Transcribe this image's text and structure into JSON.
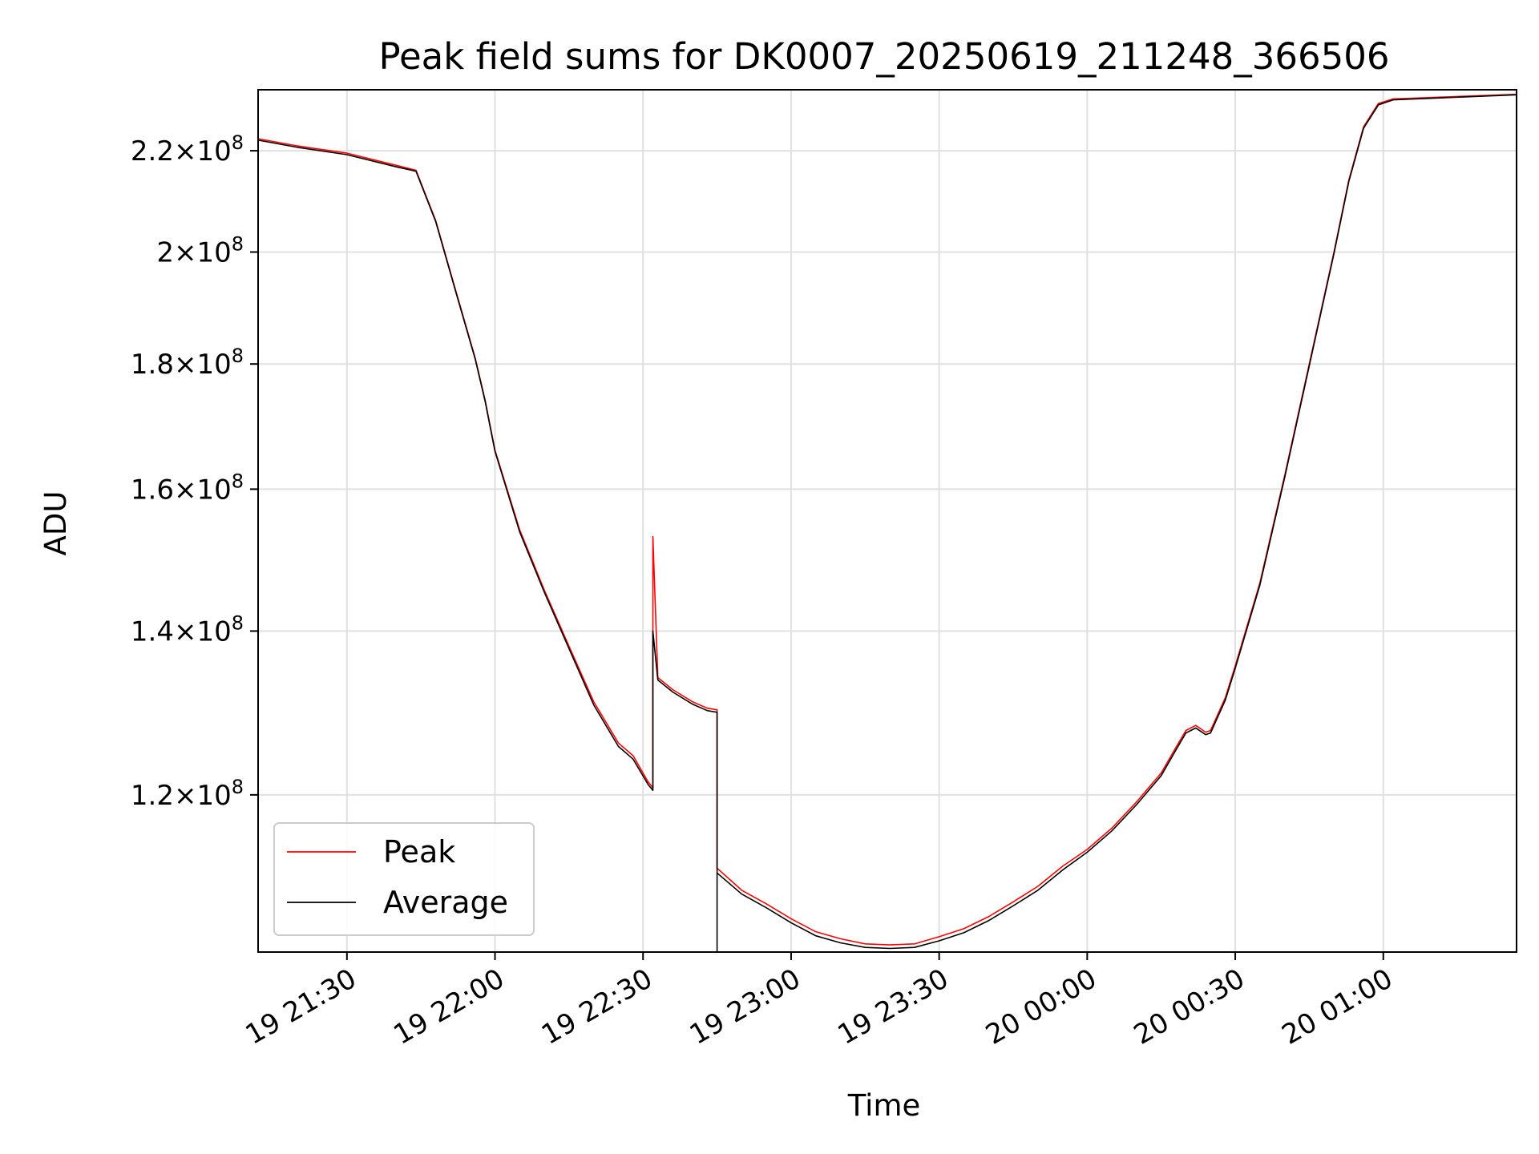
{
  "chart_data": {
    "type": "line",
    "title": "Peak field sums for DK0007_20250619_211248_366506",
    "xlabel": "Time",
    "ylabel": "ADU",
    "y_scale": "log",
    "grid": true,
    "legend_position": "lower-left",
    "xlim": [
      "2025-06-19 21:12",
      "2025-06-20 01:27"
    ],
    "ylim": [
      103500000,
      233000000
    ],
    "x_ticks": [
      {
        "value": "2025-06-19 21:30",
        "label": "19 21:30"
      },
      {
        "value": "2025-06-19 22:00",
        "label": "19 22:00"
      },
      {
        "value": "2025-06-19 22:30",
        "label": "19 22:30"
      },
      {
        "value": "2025-06-19 23:00",
        "label": "19 23:00"
      },
      {
        "value": "2025-06-19 23:30",
        "label": "19 23:30"
      },
      {
        "value": "2025-06-20 00:00",
        "label": "20 00:00"
      },
      {
        "value": "2025-06-20 00:30",
        "label": "20 00:30"
      },
      {
        "value": "2025-06-20 01:00",
        "label": "20 01:00"
      }
    ],
    "y_ticks": [
      {
        "value": 120000000,
        "mantissa": "1.2",
        "exponent": "8"
      },
      {
        "value": 140000000,
        "mantissa": "1.4",
        "exponent": "8"
      },
      {
        "value": 160000000,
        "mantissa": "1.6",
        "exponent": "8"
      },
      {
        "value": 180000000,
        "mantissa": "1.8",
        "exponent": "8"
      },
      {
        "value": 200000000,
        "mantissa": "2",
        "exponent": "8"
      },
      {
        "value": 220000000,
        "mantissa": "2.2",
        "exponent": "8"
      }
    ],
    "series": [
      {
        "name": "Peak",
        "color": "#ff0000",
        "points": [
          [
            "2025-06-19 21:12",
            222500000
          ],
          [
            "2025-06-19 21:20",
            221000000
          ],
          [
            "2025-06-19 21:30",
            219500000
          ],
          [
            "2025-06-19 21:40",
            217000000
          ],
          [
            "2025-06-19 21:44",
            216000000
          ],
          [
            "2025-06-19 21:48",
            206000000
          ],
          [
            "2025-06-19 21:52",
            193000000
          ],
          [
            "2025-06-19 21:56",
            181000000
          ],
          [
            "2025-06-19 21:58",
            174000000
          ],
          [
            "2025-06-19 22:00",
            166000000
          ],
          [
            "2025-06-19 22:05",
            154000000
          ],
          [
            "2025-06-19 22:10",
            145500000
          ],
          [
            "2025-06-19 22:15",
            138000000
          ],
          [
            "2025-06-19 22:20",
            131000000
          ],
          [
            "2025-06-19 22:25",
            126000000
          ],
          [
            "2025-06-19 22:28",
            124500000
          ],
          [
            "2025-06-19 22:31",
            121500000
          ],
          [
            "2025-06-19 22:32",
            120800000
          ],
          [
            "2025-06-19 22:32",
            153000000
          ],
          [
            "2025-06-19 22:33",
            134000000
          ],
          [
            "2025-06-19 22:36",
            132500000
          ],
          [
            "2025-06-19 22:40",
            131000000
          ],
          [
            "2025-06-19 22:43",
            130200000
          ],
          [
            "2025-06-19 22:45",
            130000000
          ],
          [
            "2025-06-19 22:45",
            112000000
          ],
          [
            "2025-06-19 22:50",
            109700000
          ],
          [
            "2025-06-19 22:55",
            108300000
          ],
          [
            "2025-06-19 23:00",
            106800000
          ],
          [
            "2025-06-19 23:05",
            105500000
          ],
          [
            "2025-06-19 23:10",
            104800000
          ],
          [
            "2025-06-19 23:15",
            104300000
          ],
          [
            "2025-06-19 23:20",
            104200000
          ],
          [
            "2025-06-19 23:25",
            104300000
          ],
          [
            "2025-06-19 23:30",
            105000000
          ],
          [
            "2025-06-19 23:35",
            105800000
          ],
          [
            "2025-06-19 23:40",
            107000000
          ],
          [
            "2025-06-19 23:45",
            108500000
          ],
          [
            "2025-06-19 23:50",
            110100000
          ],
          [
            "2025-06-19 23:55",
            112200000
          ],
          [
            "2025-06-20 00:00",
            114000000
          ],
          [
            "2025-06-20 00:05",
            116300000
          ],
          [
            "2025-06-20 00:10",
            119200000
          ],
          [
            "2025-06-20 00:15",
            122500000
          ],
          [
            "2025-06-20 00:18",
            125500000
          ],
          [
            "2025-06-20 00:20",
            127500000
          ],
          [
            "2025-06-20 00:22",
            128100000
          ],
          [
            "2025-06-20 00:24",
            127300000
          ],
          [
            "2025-06-20 00:25",
            127500000
          ],
          [
            "2025-06-20 00:28",
            131500000
          ],
          [
            "2025-06-20 00:30",
            135500000
          ],
          [
            "2025-06-20 00:35",
            146500000
          ],
          [
            "2025-06-20 00:40",
            162000000
          ],
          [
            "2025-06-20 00:45",
            180000000
          ],
          [
            "2025-06-20 00:50",
            200000000
          ],
          [
            "2025-06-20 00:53",
            214000000
          ],
          [
            "2025-06-20 00:56",
            225000000
          ],
          [
            "2025-06-20 00:59",
            230000000
          ],
          [
            "2025-06-20 01:02",
            231000000
          ],
          [
            "2025-06-20 01:27",
            232000000
          ]
        ]
      },
      {
        "name": "Average",
        "color": "#000000",
        "points": [
          [
            "2025-06-19 21:12",
            222200000
          ],
          [
            "2025-06-19 21:20",
            220700000
          ],
          [
            "2025-06-19 21:30",
            219200000
          ],
          [
            "2025-06-19 21:40",
            216700000
          ],
          [
            "2025-06-19 21:44",
            215800000
          ],
          [
            "2025-06-19 21:48",
            205800000
          ],
          [
            "2025-06-19 21:52",
            192800000
          ],
          [
            "2025-06-19 21:56",
            180800000
          ],
          [
            "2025-06-19 21:58",
            173800000
          ],
          [
            "2025-06-19 22:00",
            165800000
          ],
          [
            "2025-06-19 22:05",
            153700000
          ],
          [
            "2025-06-19 22:10",
            145200000
          ],
          [
            "2025-06-19 22:15",
            137700000
          ],
          [
            "2025-06-19 22:20",
            130600000
          ],
          [
            "2025-06-19 22:25",
            125600000
          ],
          [
            "2025-06-19 22:28",
            124100000
          ],
          [
            "2025-06-19 22:31",
            121200000
          ],
          [
            "2025-06-19 22:32",
            120500000
          ],
          [
            "2025-06-19 22:32",
            140000000
          ],
          [
            "2025-06-19 22:33",
            133700000
          ],
          [
            "2025-06-19 22:36",
            132200000
          ],
          [
            "2025-06-19 22:40",
            130700000
          ],
          [
            "2025-06-19 22:43",
            129900000
          ],
          [
            "2025-06-19 22:45",
            129700000
          ],
          [
            "2025-06-19 22:45",
            103500000
          ],
          [
            "2025-06-19 22:45",
            111500000
          ],
          [
            "2025-06-19 22:50",
            109300000
          ],
          [
            "2025-06-19 22:55",
            107900000
          ],
          [
            "2025-06-19 23:00",
            106400000
          ],
          [
            "2025-06-19 23:05",
            105100000
          ],
          [
            "2025-06-19 23:10",
            104400000
          ],
          [
            "2025-06-19 23:15",
            103950000
          ],
          [
            "2025-06-19 23:20",
            103850000
          ],
          [
            "2025-06-19 23:25",
            103950000
          ],
          [
            "2025-06-19 23:30",
            104600000
          ],
          [
            "2025-06-19 23:35",
            105400000
          ],
          [
            "2025-06-19 23:40",
            106600000
          ],
          [
            "2025-06-19 23:45",
            108100000
          ],
          [
            "2025-06-19 23:50",
            109700000
          ],
          [
            "2025-06-19 23:55",
            111800000
          ],
          [
            "2025-06-20 00:00",
            113700000
          ],
          [
            "2025-06-20 00:05",
            116000000
          ],
          [
            "2025-06-20 00:10",
            118900000
          ],
          [
            "2025-06-20 00:15",
            122200000
          ],
          [
            "2025-06-20 00:18",
            125200000
          ],
          [
            "2025-06-20 00:20",
            127200000
          ],
          [
            "2025-06-20 00:22",
            127800000
          ],
          [
            "2025-06-20 00:24",
            127000000
          ],
          [
            "2025-06-20 00:25",
            127200000
          ],
          [
            "2025-06-20 00:28",
            131200000
          ],
          [
            "2025-06-20 00:30",
            135200000
          ],
          [
            "2025-06-20 00:35",
            146200000
          ],
          [
            "2025-06-20 00:40",
            161700000
          ],
          [
            "2025-06-20 00:45",
            179700000
          ],
          [
            "2025-06-20 00:50",
            199700000
          ],
          [
            "2025-06-20 00:53",
            213700000
          ],
          [
            "2025-06-20 00:56",
            224700000
          ],
          [
            "2025-06-20 00:59",
            229700000
          ],
          [
            "2025-06-20 01:02",
            230800000
          ],
          [
            "2025-06-20 01:27",
            231900000
          ]
        ]
      }
    ]
  }
}
